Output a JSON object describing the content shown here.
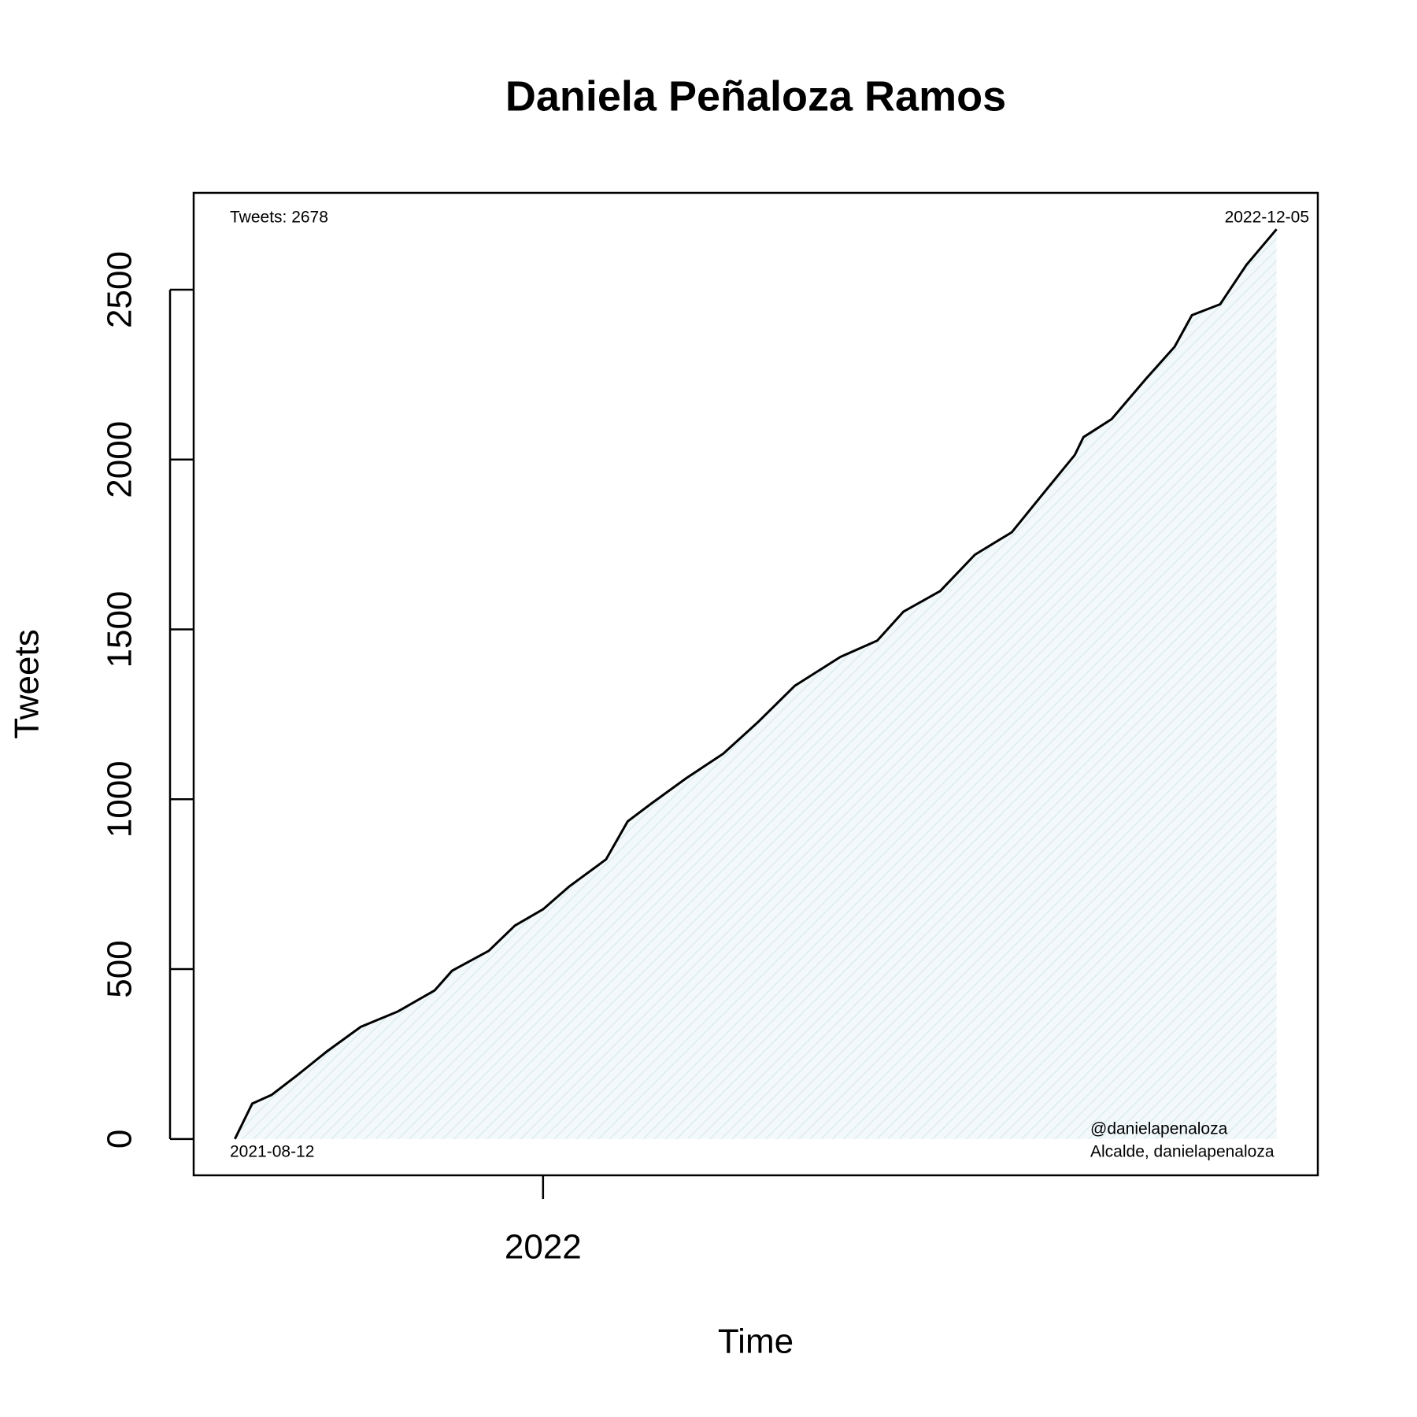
{
  "chart_data": {
    "type": "line",
    "title": "Daniela Peñaloza Ramos",
    "x_label": "Time",
    "y_label": "Tweets",
    "x": [
      "2021-08-12",
      "2021-08-20",
      "2021-08-29",
      "2021-09-10",
      "2021-09-23",
      "2021-10-09",
      "2021-10-26",
      "2021-11-12",
      "2021-11-20",
      "2021-12-07",
      "2021-12-19",
      "2022-01-01",
      "2022-01-13",
      "2022-01-30",
      "2022-02-09",
      "2022-02-20",
      "2022-03-08",
      "2022-03-25",
      "2022-04-10",
      "2022-04-27",
      "2022-05-18",
      "2022-06-04",
      "2022-06-16",
      "2022-07-03",
      "2022-07-19",
      "2022-08-05",
      "2022-08-22",
      "2022-09-03",
      "2022-09-07",
      "2022-09-20",
      "2022-10-06",
      "2022-10-19",
      "2022-10-27",
      "2022-11-09",
      "2022-11-21",
      "2022-12-05"
    ],
    "series": [
      {
        "name": "Tweets",
        "color": "#000000",
        "fill": "#e3f1f4",
        "values": [
          0,
          104,
          130,
          189,
          256,
          330,
          375,
          437,
          495,
          554,
          628,
          676,
          743,
          823,
          935,
          988,
          1062,
          1134,
          1227,
          1334,
          1419,
          1467,
          1552,
          1613,
          1720,
          1786,
          1920,
          2013,
          2066,
          2119,
          2239,
          2332,
          2425,
          2457,
          2572,
          2678
        ]
      }
    ],
    "xlim": [
      "2021-07-24",
      "2022-12-24"
    ],
    "xticks": [
      {
        "value": "2022-01-01",
        "label": "2022"
      }
    ],
    "ylim": [
      -107,
      2785
    ],
    "yticks": [
      0,
      500,
      1000,
      1500,
      2000,
      2500
    ],
    "grid": false,
    "annotations": {
      "top_left": "Tweets: 2678",
      "top_right": "2022-12-05",
      "bottom_left": "2021-08-12",
      "bottom_right": [
        "@danielapenaloza",
        "Alcalde, danielapenaloza"
      ]
    }
  }
}
